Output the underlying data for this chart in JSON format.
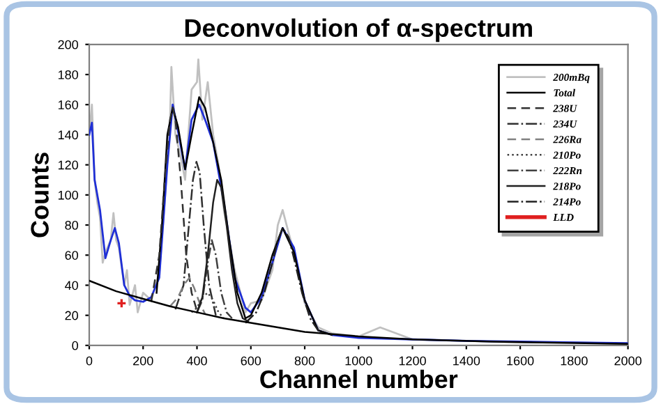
{
  "chart_data": {
    "type": "line",
    "title": "Deconvolution of α-spectrum",
    "xlabel": "Channel number",
    "ylabel": "Counts",
    "xlim": [
      0,
      2000
    ],
    "xticks": [
      0,
      200,
      400,
      600,
      800,
      1000,
      1200,
      1400,
      1600,
      1800,
      2000
    ],
    "ylim": [
      0,
      200
    ],
    "yticks": [
      0,
      20,
      40,
      60,
      80,
      100,
      120,
      140,
      160,
      180,
      200
    ],
    "grid": false,
    "legend": "top right",
    "marker": "none",
    "series": [
      {
        "name": "200mBq",
        "color": "#c0c0c0",
        "line_style": "solid",
        "x": [
          0,
          10,
          20,
          30,
          40,
          50,
          60,
          80,
          90,
          100,
          110,
          130,
          140,
          150,
          170,
          180,
          200,
          230,
          260,
          280,
          300,
          305,
          320,
          340,
          356,
          380,
          400,
          405,
          420,
          440,
          460,
          480,
          500,
          540,
          580,
          600,
          640,
          680,
          700,
          718,
          740,
          760,
          800,
          850,
          900,
          1000,
          1080,
          1200,
          1400,
          1600,
          1800,
          2000
        ],
        "values": [
          140,
          160,
          110,
          95,
          85,
          55,
          62,
          70,
          88,
          70,
          65,
          40,
          50,
          27,
          40,
          22,
          35,
          30,
          48,
          95,
          150,
          185,
          140,
          125,
          110,
          170,
          175,
          190,
          150,
          175,
          140,
          120,
          90,
          50,
          22,
          28,
          30,
          50,
          80,
          90,
          75,
          62,
          28,
          12,
          8,
          6,
          12,
          4,
          3,
          2,
          2,
          1
        ]
      },
      {
        "color": "#1f2fd6",
        "line_style": "solid",
        "x": [
          0,
          10,
          20,
          40,
          60,
          80,
          95,
          110,
          130,
          150,
          170,
          200,
          230,
          260,
          290,
          310,
          330,
          356,
          380,
          408,
          430,
          460,
          500,
          540,
          580,
          600,
          640,
          680,
          718,
          760,
          800,
          850,
          900,
          1000,
          1200,
          1400,
          1600,
          1800,
          2000
        ],
        "values": [
          140,
          148,
          110,
          90,
          58,
          70,
          78,
          68,
          40,
          33,
          30,
          29,
          32,
          45,
          120,
          160,
          142,
          117,
          150,
          160,
          150,
          135,
          95,
          45,
          25,
          22,
          32,
          55,
          78,
          65,
          30,
          10,
          7,
          5,
          4,
          3,
          2.5,
          2,
          1.5
        ]
      },
      {
        "name": "Total",
        "color": "#000000",
        "line_style": "solid",
        "x": [
          250,
          270,
          290,
          310,
          330,
          356,
          380,
          408,
          430,
          460,
          490,
          520,
          550,
          580,
          600,
          640,
          680,
          718,
          760,
          800,
          850,
          900
        ],
        "values": [
          35,
          80,
          140,
          158,
          145,
          117,
          140,
          165,
          158,
          135,
          110,
          70,
          35,
          18,
          20,
          35,
          60,
          78,
          62,
          30,
          10,
          7
        ]
      },
      {
        "name": "238U",
        "color": "#303030",
        "line_style": "dashed",
        "x": [
          230,
          260,
          280,
          300,
          310,
          320,
          340,
          360,
          380,
          400
        ],
        "values": [
          29,
          60,
          110,
          150,
          158,
          150,
          110,
          60,
          35,
          23
        ]
      },
      {
        "name": "234U",
        "color": "#303030",
        "line_style": "dashdot",
        "x": [
          320,
          350,
          370,
          385,
          398,
          410,
          425,
          445,
          470
        ],
        "values": [
          24,
          40,
          80,
          110,
          122,
          115,
          80,
          40,
          20
        ]
      },
      {
        "name": "226Ra",
        "color": "#808080",
        "line_style": "dashed",
        "x": [
          300,
          330,
          350,
          372,
          390,
          410,
          430
        ],
        "values": [
          26,
          32,
          40,
          45,
          38,
          28,
          21
        ]
      },
      {
        "name": "210Po",
        "color": "#404040",
        "line_style": "dotted",
        "x": [
          380,
          400,
          420,
          440,
          460,
          480,
          500
        ],
        "values": [
          22,
          25,
          32,
          35,
          30,
          22,
          18
        ]
      },
      {
        "name": "222Rn",
        "color": "#404040",
        "line_style": "dashdot",
        "x": [
          400,
          420,
          440,
          455,
          470,
          490,
          510,
          530
        ],
        "values": [
          22,
          30,
          55,
          70,
          60,
          35,
          22,
          18
        ]
      },
      {
        "name": "218Po",
        "color": "#202020",
        "line_style": "solid",
        "x": [
          400,
          420,
          440,
          460,
          475,
          490,
          510,
          530,
          550,
          570,
          590
        ],
        "values": [
          22,
          32,
          60,
          95,
          110,
          105,
          80,
          50,
          28,
          18,
          16
        ]
      },
      {
        "name": "214Po",
        "color": "#202020",
        "line_style": "dashdot",
        "x": [
          580,
          620,
          650,
          680,
          700,
          718,
          740,
          760,
          790,
          820,
          850,
          880
        ],
        "values": [
          15,
          22,
          35,
          55,
          70,
          78,
          72,
          58,
          35,
          18,
          10,
          8
        ]
      },
      {
        "color": "#000000",
        "line_style": "solid",
        "x": [
          0,
          100,
          200,
          300,
          400,
          500,
          600,
          700,
          800,
          1000,
          1200,
          1500,
          2000
        ],
        "values": [
          43,
          36,
          31,
          26,
          22,
          18,
          15,
          12,
          9,
          6,
          4,
          2.5,
          1
        ]
      },
      {
        "name": "LLD",
        "type": "scatter",
        "marker": "cross",
        "color": "#e02020",
        "x": [
          120
        ],
        "values": [
          28
        ]
      }
    ]
  }
}
